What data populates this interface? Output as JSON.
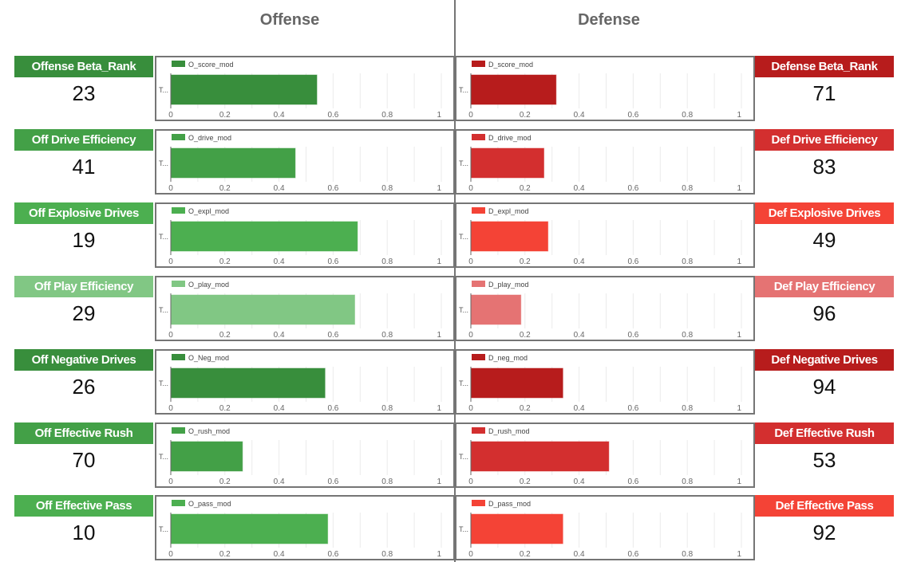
{
  "headers": {
    "offense": "Offense",
    "defense": "Defense"
  },
  "colors": {
    "off_dark": "#388e3c",
    "off_mid": "#43a047",
    "off_bright": "#4caf50",
    "off_light": "#81c784",
    "def_dark": "#b71c1c",
    "def_mid": "#d32f2f",
    "def_bright": "#f44336",
    "def_light": "#e57373"
  },
  "rows": [
    {
      "off": {
        "label": "Offense Beta_Rank",
        "value": "23",
        "color": "#388e3c"
      },
      "def": {
        "label": "Defense Beta_Rank",
        "value": "71",
        "color": "#b71c1c"
      }
    },
    {
      "off": {
        "label": "Off Drive Efficiency",
        "value": "41",
        "color": "#43a047"
      },
      "def": {
        "label": "Def Drive Efficiency",
        "value": "83",
        "color": "#d32f2f"
      }
    },
    {
      "off": {
        "label": "Off Explosive Drives",
        "value": "19",
        "color": "#4caf50"
      },
      "def": {
        "label": "Def Explosive Drives",
        "value": "49",
        "color": "#f44336"
      }
    },
    {
      "off": {
        "label": "Off Play Efficiency",
        "value": "29",
        "color": "#81c784"
      },
      "def": {
        "label": "Def Play Efficiency",
        "value": "96",
        "color": "#e57373"
      }
    },
    {
      "off": {
        "label": "Off Negative Drives",
        "value": "26",
        "color": "#388e3c"
      },
      "def": {
        "label": "Def Negative Drives",
        "value": "94",
        "color": "#b71c1c"
      }
    },
    {
      "off": {
        "label": "Off Effective Rush",
        "value": "70",
        "color": "#43a047"
      },
      "def": {
        "label": "Def Effective Rush",
        "value": "53",
        "color": "#d32f2f"
      }
    },
    {
      "off": {
        "label": "Off Effective Pass",
        "value": "10",
        "color": "#4caf50"
      },
      "def": {
        "label": "Def Effective Pass",
        "value": "92",
        "color": "#f44336"
      }
    }
  ],
  "chart_data": [
    {
      "type": "bar",
      "orientation": "horizontal",
      "side": "offense",
      "categories": [
        "T..."
      ],
      "series": [
        {
          "name": "O_score_mod",
          "values": [
            0.54
          ],
          "color": "#388e3c"
        }
      ],
      "xlim": [
        0,
        1
      ],
      "xticks": [
        "0",
        "0.2",
        "0.4",
        "0.6",
        "0.8",
        "1"
      ],
      "grid": true,
      "legend": "top-left"
    },
    {
      "type": "bar",
      "orientation": "horizontal",
      "side": "defense",
      "categories": [
        "T..."
      ],
      "series": [
        {
          "name": "D_score_mod",
          "values": [
            0.315
          ],
          "color": "#b71c1c"
        }
      ],
      "xlim": [
        0,
        1
      ],
      "xticks": [
        "0",
        "0.2",
        "0.4",
        "0.6",
        "0.8",
        "1"
      ],
      "grid": true,
      "legend": "top-left"
    },
    {
      "type": "bar",
      "orientation": "horizontal",
      "side": "offense",
      "categories": [
        "T..."
      ],
      "series": [
        {
          "name": "O_drive_mod",
          "values": [
            0.46
          ],
          "color": "#43a047"
        }
      ],
      "xlim": [
        0,
        1
      ],
      "xticks": [
        "0",
        "0.2",
        "0.4",
        "0.6",
        "0.8",
        "1"
      ],
      "grid": true,
      "legend": "top-left"
    },
    {
      "type": "bar",
      "orientation": "horizontal",
      "side": "defense",
      "categories": [
        "T..."
      ],
      "series": [
        {
          "name": "D_drive_mod",
          "values": [
            0.27
          ],
          "color": "#d32f2f"
        }
      ],
      "xlim": [
        0,
        1
      ],
      "xticks": [
        "0",
        "0.2",
        "0.4",
        "0.6",
        "0.8",
        "1"
      ],
      "grid": true,
      "legend": "top-left"
    },
    {
      "type": "bar",
      "orientation": "horizontal",
      "side": "offense",
      "categories": [
        "T..."
      ],
      "series": [
        {
          "name": "O_expl_mod",
          "values": [
            0.69
          ],
          "color": "#4caf50"
        }
      ],
      "xlim": [
        0,
        1
      ],
      "xticks": [
        "0",
        "0.2",
        "0.4",
        "0.6",
        "0.8",
        "1"
      ],
      "grid": true,
      "legend": "top-left"
    },
    {
      "type": "bar",
      "orientation": "horizontal",
      "side": "defense",
      "categories": [
        "T..."
      ],
      "series": [
        {
          "name": "D_expl_mod",
          "values": [
            0.285
          ],
          "color": "#f44336"
        }
      ],
      "xlim": [
        0,
        1
      ],
      "xticks": [
        "0",
        "0.2",
        "0.4",
        "0.6",
        "0.8",
        "1"
      ],
      "grid": true,
      "legend": "top-left"
    },
    {
      "type": "bar",
      "orientation": "horizontal",
      "side": "offense",
      "categories": [
        "T..."
      ],
      "series": [
        {
          "name": "O_play_mod",
          "values": [
            0.68
          ],
          "color": "#81c784"
        }
      ],
      "xlim": [
        0,
        1
      ],
      "xticks": [
        "0",
        "0.2",
        "0.4",
        "0.6",
        "0.8",
        "1"
      ],
      "grid": true,
      "legend": "top-left"
    },
    {
      "type": "bar",
      "orientation": "horizontal",
      "side": "defense",
      "categories": [
        "T..."
      ],
      "series": [
        {
          "name": "D_play_mod",
          "values": [
            0.185
          ],
          "color": "#e57373"
        }
      ],
      "xlim": [
        0,
        1
      ],
      "xticks": [
        "0",
        "0.2",
        "0.4",
        "0.6",
        "0.8",
        "1"
      ],
      "grid": true,
      "legend": "top-left"
    },
    {
      "type": "bar",
      "orientation": "horizontal",
      "side": "offense",
      "categories": [
        "T..."
      ],
      "series": [
        {
          "name": "O_Neg_mod",
          "values": [
            0.57
          ],
          "color": "#388e3c"
        }
      ],
      "xlim": [
        0,
        1
      ],
      "xticks": [
        "0",
        "0.2",
        "0.4",
        "0.6",
        "0.8",
        "1"
      ],
      "grid": true,
      "legend": "top-left"
    },
    {
      "type": "bar",
      "orientation": "horizontal",
      "side": "defense",
      "categories": [
        "T..."
      ],
      "series": [
        {
          "name": "D_neg_mod",
          "values": [
            0.34
          ],
          "color": "#b71c1c"
        }
      ],
      "xlim": [
        0,
        1
      ],
      "xticks": [
        "0",
        "0.2",
        "0.4",
        "0.6",
        "0.8",
        "1"
      ],
      "grid": true,
      "legend": "top-left"
    },
    {
      "type": "bar",
      "orientation": "horizontal",
      "side": "offense",
      "categories": [
        "T..."
      ],
      "series": [
        {
          "name": "O_rush_mod",
          "values": [
            0.265
          ],
          "color": "#43a047"
        }
      ],
      "xlim": [
        0,
        1
      ],
      "xticks": [
        "0",
        "0.2",
        "0.4",
        "0.6",
        "0.8",
        "1"
      ],
      "grid": true,
      "legend": "top-left"
    },
    {
      "type": "bar",
      "orientation": "horizontal",
      "side": "defense",
      "categories": [
        "T..."
      ],
      "series": [
        {
          "name": "D_rush_mod",
          "values": [
            0.51
          ],
          "color": "#d32f2f"
        }
      ],
      "xlim": [
        0,
        1
      ],
      "xticks": [
        "0",
        "0.2",
        "0.4",
        "0.6",
        "0.8",
        "1"
      ],
      "grid": true,
      "legend": "top-left"
    },
    {
      "type": "bar",
      "orientation": "horizontal",
      "side": "offense",
      "categories": [
        "T..."
      ],
      "series": [
        {
          "name": "O_pass_mod",
          "values": [
            0.58
          ],
          "color": "#4caf50"
        }
      ],
      "xlim": [
        0,
        1
      ],
      "xticks": [
        "0",
        "0.2",
        "0.4",
        "0.6",
        "0.8",
        "1"
      ],
      "grid": true,
      "legend": "top-left"
    },
    {
      "type": "bar",
      "orientation": "horizontal",
      "side": "defense",
      "categories": [
        "T..."
      ],
      "series": [
        {
          "name": "D_pass_mod",
          "values": [
            0.34
          ],
          "color": "#f44336"
        }
      ],
      "xlim": [
        0,
        1
      ],
      "xticks": [
        "0",
        "0.2",
        "0.4",
        "0.6",
        "0.8",
        "1"
      ],
      "grid": true,
      "legend": "top-left"
    }
  ]
}
